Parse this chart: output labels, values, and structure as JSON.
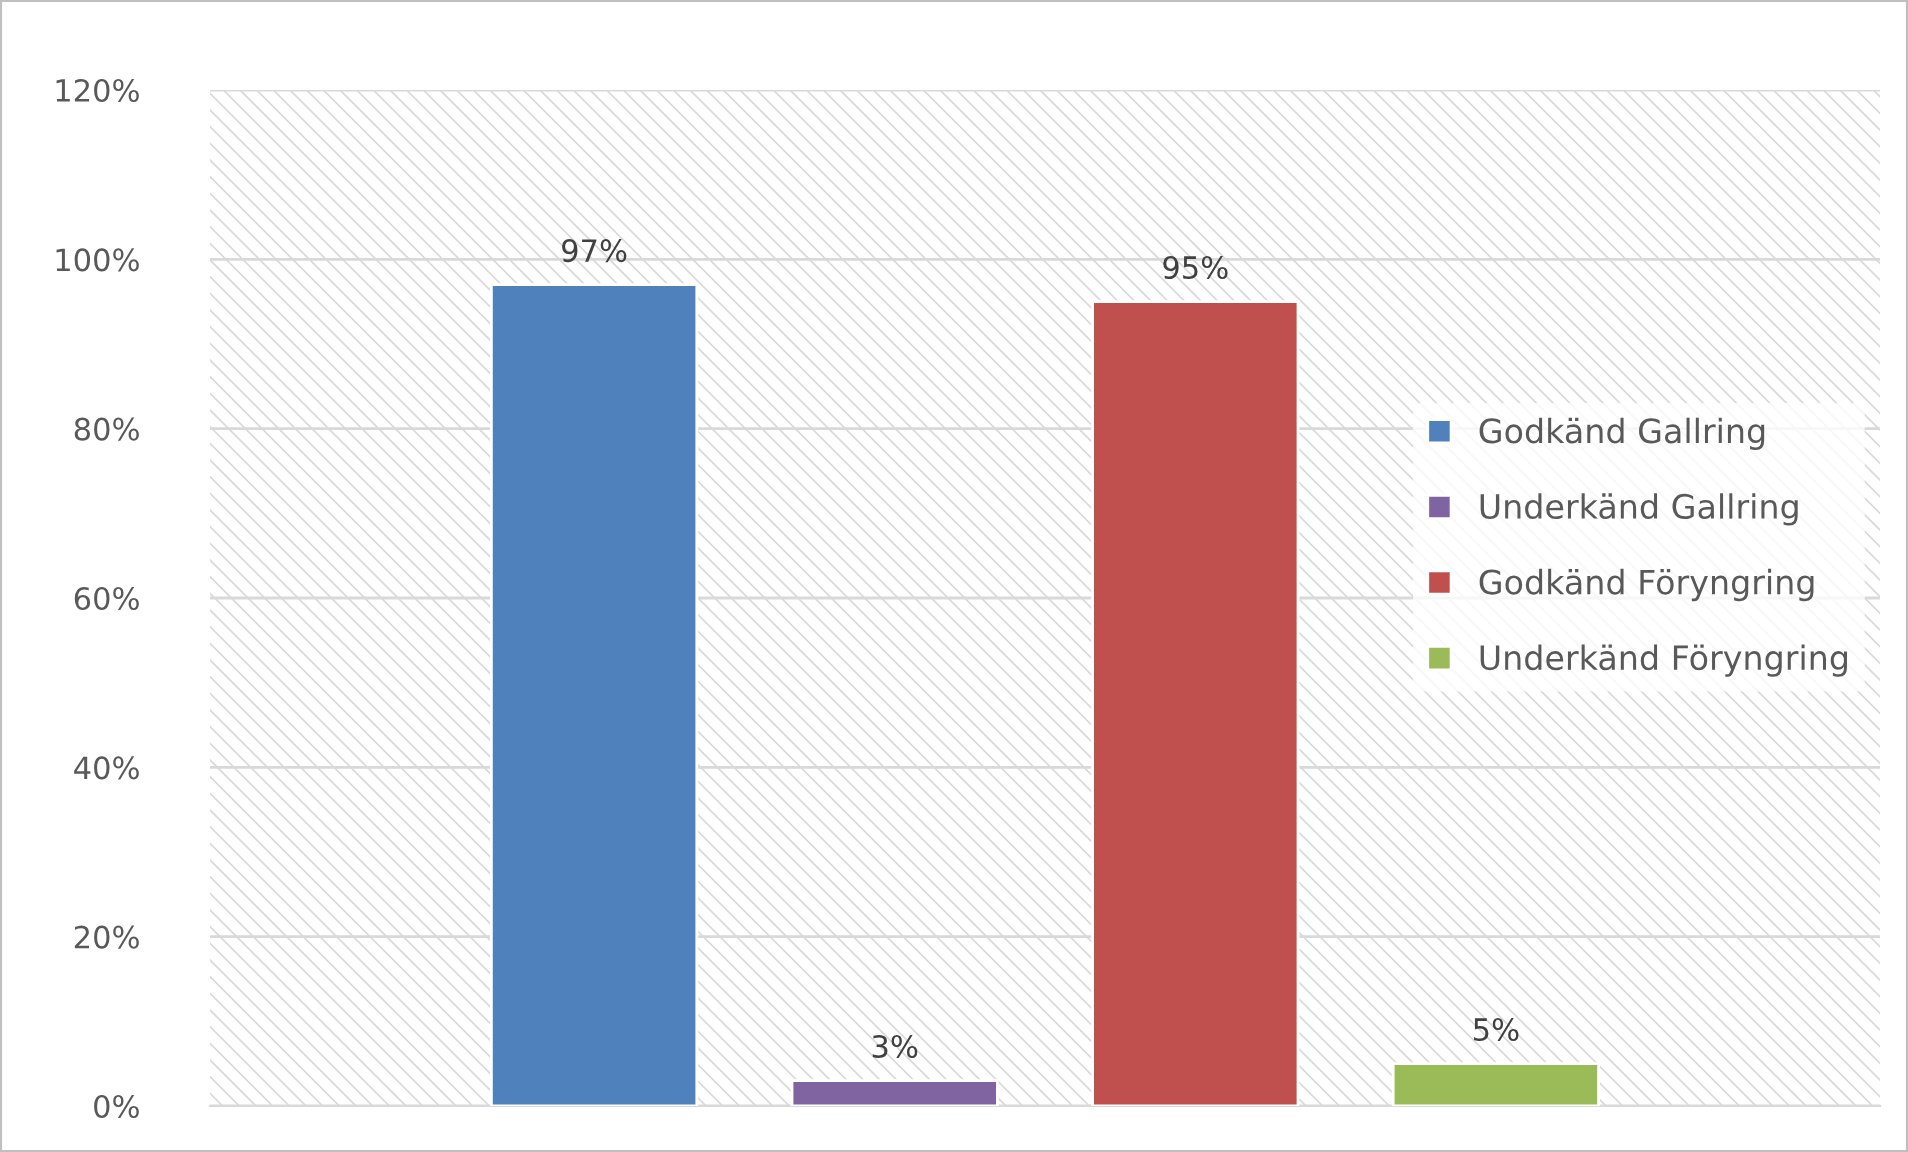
{
  "chart_data": {
    "type": "bar",
    "categories": [
      null
    ],
    "series": [
      {
        "name": "Godkänd Gallring",
        "color": "#4f81bd",
        "values": [
          97
        ]
      },
      {
        "name": "Underkänd Gallring",
        "color": "#8064a2",
        "values": [
          3
        ]
      },
      {
        "name": "Godkänd Föryngring",
        "color": "#c0504d",
        "values": [
          95
        ]
      },
      {
        "name": "Underkänd Föryngring",
        "color": "#9bbb59",
        "values": [
          5
        ]
      }
    ],
    "ylim": [
      0,
      120
    ],
    "yticks": [
      {
        "value": 0,
        "label": "0%"
      },
      {
        "value": 20,
        "label": "20%"
      },
      {
        "value": 40,
        "label": "40%"
      },
      {
        "value": 60,
        "label": "60%"
      },
      {
        "value": 80,
        "label": "80%"
      },
      {
        "value": 100,
        "label": "100%"
      },
      {
        "value": 120,
        "label": "120%"
      }
    ],
    "value_labels": [
      "97%",
      "3%",
      "95%",
      "5%"
    ],
    "grid": "y",
    "legend": "right"
  }
}
